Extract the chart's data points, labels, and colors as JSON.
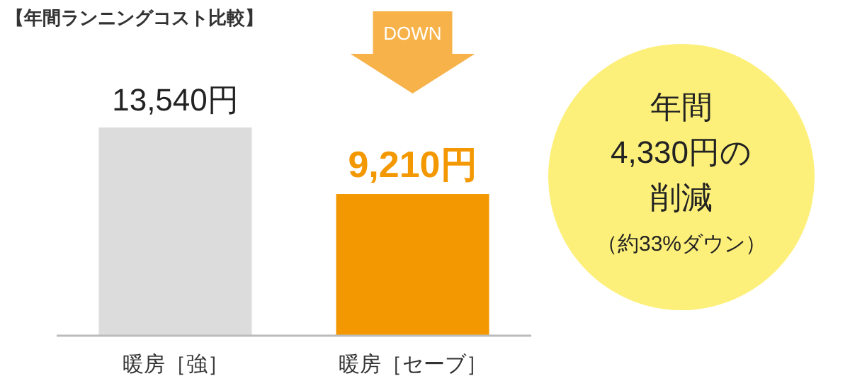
{
  "chart_data": {
    "type": "bar",
    "title": "【年間ランニングコスト比較】",
    "categories": [
      "暖房［強］",
      "暖房［セーブ］"
    ],
    "values": [
      13540,
      9210
    ],
    "colors": [
      "#dcdcdc",
      "#f39800"
    ],
    "value_labels": [
      "13,540円",
      "9,210円"
    ],
    "annotations": [
      "DOWN",
      "年間",
      "4,330円の",
      "削減",
      "（約33%ダウン）"
    ]
  }
}
